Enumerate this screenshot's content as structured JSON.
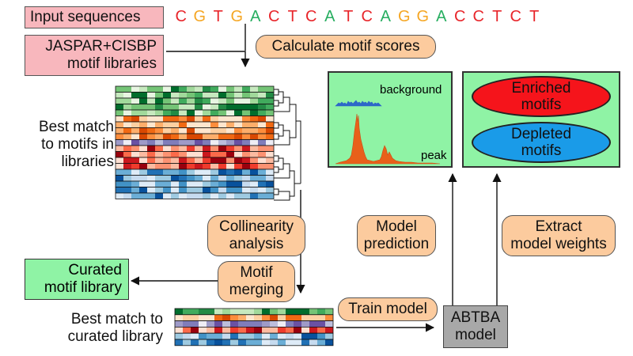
{
  "input_sequences": {
    "label": "Input sequences",
    "sequence": [
      "C",
      "G",
      "T",
      "G",
      "A",
      "C",
      "T",
      "C",
      "A",
      "T",
      "C",
      "A",
      "G",
      "G",
      "A",
      "C",
      "C",
      "T",
      "C",
      "T"
    ],
    "colors": {
      "C": "#e8262b",
      "G": "#f5a623",
      "T": "#e8262b",
      "A": "#27ae60"
    }
  },
  "motif_libraries": {
    "line1": "JASPAR+CISBP",
    "line2": "motif libraries"
  },
  "calc_scores": "Calculate motif scores",
  "best_match_libraries": {
    "line1": "Best match",
    "line2": "to motifs in",
    "line3": "libraries"
  },
  "collinearity": {
    "line1": "Collinearity",
    "line2": "analysis"
  },
  "motif_merging": {
    "line1": "Motif",
    "line2": "merging"
  },
  "curated_library": {
    "line1": "Curated",
    "line2": "motif library"
  },
  "best_match_curated": {
    "line1": "Best match to",
    "line2": "curated library"
  },
  "train_model": "Train model",
  "abtba_model": {
    "line1": "ABTBA",
    "line2": "model"
  },
  "model_prediction": {
    "line1": "Model",
    "line2": "prediction"
  },
  "extract_weights": {
    "line1": "Extract",
    "line2": "model weights"
  },
  "prediction_panel": {
    "background_label": "background",
    "peak_label": "peak"
  },
  "weights_panel": {
    "enriched": {
      "line1": "Enriched",
      "line2": "motifs"
    },
    "depleted": {
      "line1": "Depleted",
      "line2": "motifs"
    }
  },
  "colors": {
    "pink_box": "#f8b7bd",
    "orange_pill": "#fccb9e",
    "green_panel": "#8ff3a5",
    "enriched_red": "#f5141b",
    "depleted_blue": "#1a9be8",
    "model_grey": "#a8a8a8"
  }
}
